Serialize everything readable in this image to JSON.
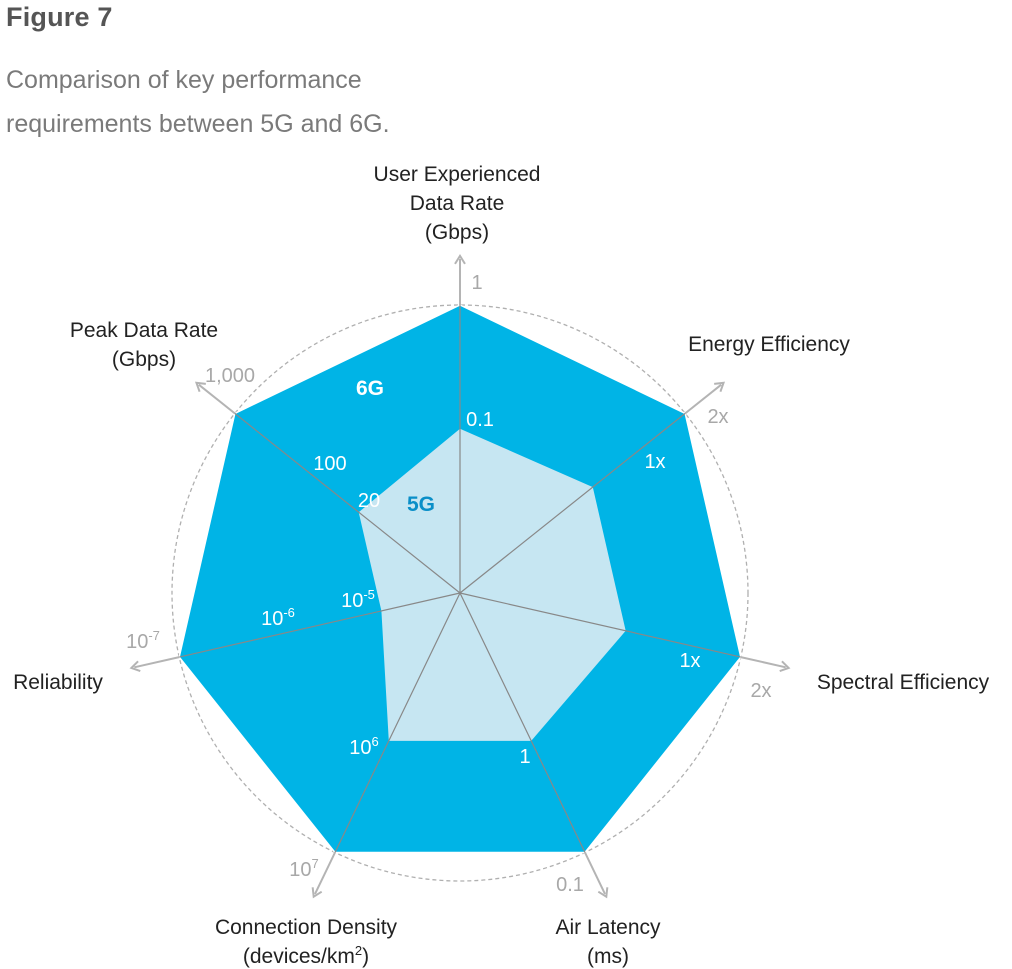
{
  "figure": {
    "label": "Figure 7",
    "caption_lines": [
      "Comparison of key performance",
      "requirements between 5G and 6G."
    ]
  },
  "colors": {
    "series_6g": "#00b4e6",
    "series_5g": "#c6e6f2",
    "axis_line": "#b4b4b4",
    "inner_axis": "#888888",
    "ring": "#b0b0b0",
    "outer_tick": "#a8a8a8",
    "inner_tick": "#ffffff",
    "label_6g": "#ffffff",
    "label_5g": "#0a8fc8"
  },
  "chart_data": {
    "type": "radar",
    "title": "Comparison of key performance requirements between 5G and 6G.",
    "axes": [
      {
        "name": "User Experienced Data Rate (Gbps)",
        "title_lines": [
          "User Experienced",
          "Data Rate",
          "(Gbps)"
        ],
        "value_6g": "1",
        "value_5g": "0.1"
      },
      {
        "name": "Energy Efficiency",
        "title_lines": [
          "Energy Efficiency"
        ],
        "value_6g": "2x",
        "value_5g": "1x"
      },
      {
        "name": "Spectral Efficiency",
        "title_lines": [
          "Spectral Efficiency"
        ],
        "value_6g": "2x",
        "value_5g": "1x"
      },
      {
        "name": "Air Latency (ms)",
        "title_lines": [
          "Air Latency",
          "(ms)"
        ],
        "value_6g": "0.1",
        "value_5g": "1"
      },
      {
        "name": "Connection Density (devices/km2)",
        "title_lines": [
          "Connection Density",
          "(devices/km2)"
        ],
        "value_6g": "10^7",
        "value_5g": "10^6"
      },
      {
        "name": "Reliability",
        "title_lines": [
          "Reliability"
        ],
        "value_6g": "10^-7",
        "value_5g": "10^-5"
      },
      {
        "name": "Peak Data Rate (Gbps)",
        "title_lines": [
          "Peak Data Rate",
          "(Gbps)"
        ],
        "value_6g": "1,000",
        "value_5g": "20"
      }
    ],
    "extra_ticks": [
      {
        "axis": "Peak Data Rate (Gbps)",
        "label": "100"
      },
      {
        "axis": "Reliability",
        "label": "10^-6"
      }
    ],
    "series": [
      {
        "name": "6G",
        "values": [
          1.0,
          1.0,
          1.0,
          1.0,
          1.0,
          1.0,
          1.0
        ]
      },
      {
        "name": "5G",
        "values": [
          0.57,
          0.59,
          0.59,
          0.57,
          0.57,
          0.28,
          0.45
        ]
      }
    ],
    "rings": 3,
    "grid": true,
    "legend": "none"
  }
}
